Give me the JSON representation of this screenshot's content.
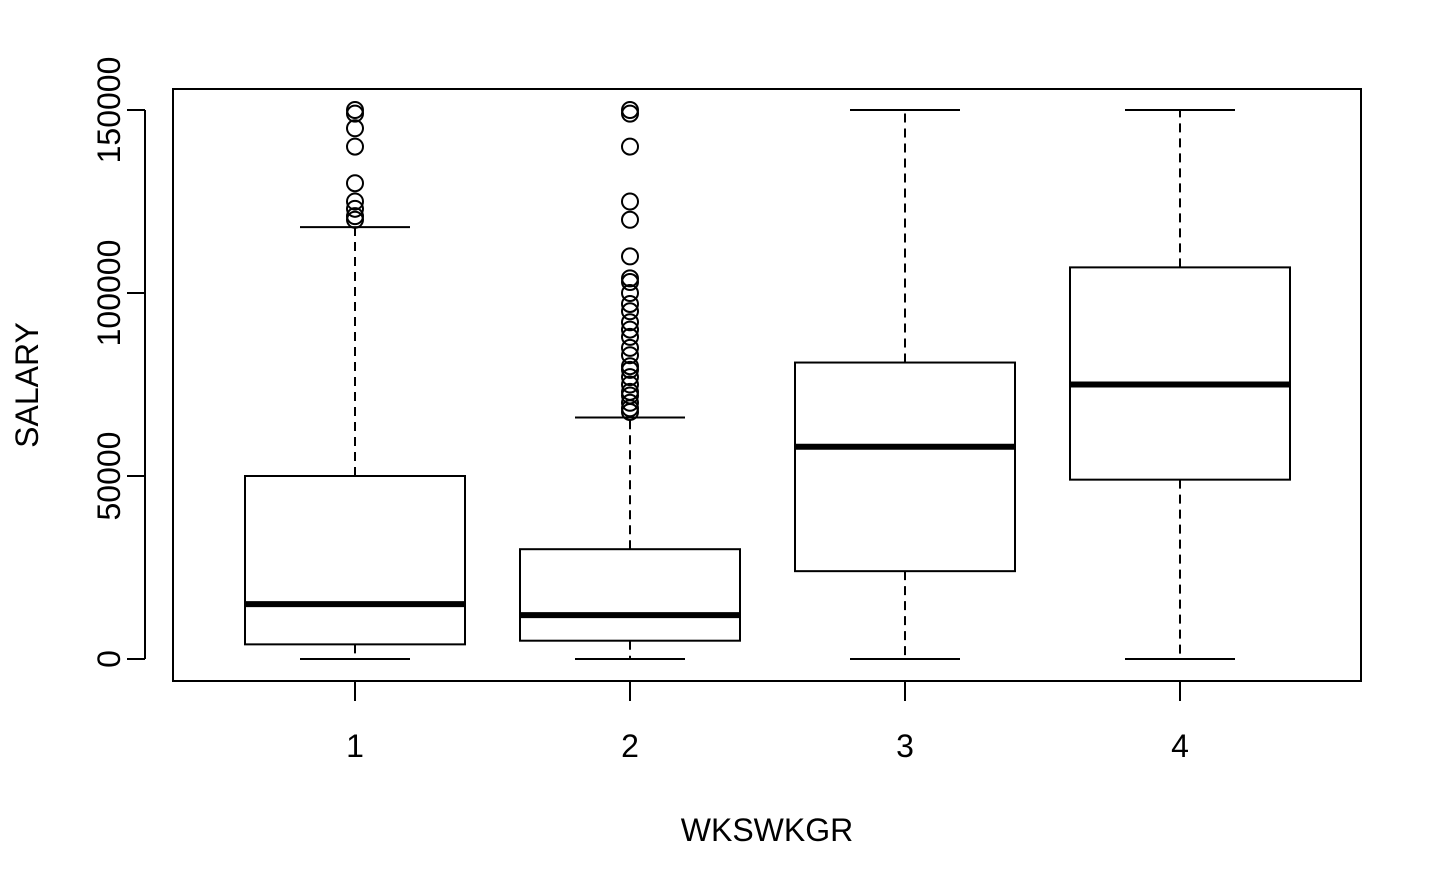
{
  "chart_data": {
    "type": "boxplot",
    "title": "",
    "xlabel": "WKSWKGR",
    "ylabel": "SALARY",
    "categories": [
      "1",
      "2",
      "3",
      "4"
    ],
    "ylim": [
      -6000,
      156000
    ],
    "y_ticks": [
      0,
      50000,
      100000,
      150000
    ],
    "y_tick_labels": [
      "0",
      "50000",
      "100000",
      "150000"
    ],
    "grid": false,
    "legend": "none",
    "boxes": [
      {
        "category": "1",
        "whisker_low": 0,
        "q1": 4000,
        "median": 15000,
        "q3": 50000,
        "whisker_high": 118000,
        "outliers": [
          120000,
          121000,
          123000,
          125000,
          130000,
          140000,
          145000,
          149000,
          150000
        ]
      },
      {
        "category": "2",
        "whisker_low": 0,
        "q1": 5000,
        "median": 12000,
        "q3": 30000,
        "whisker_high": 66000,
        "outliers": [
          67500,
          68500,
          70000,
          72000,
          73000,
          75000,
          77000,
          79000,
          80000,
          83000,
          85000,
          88000,
          90000,
          92000,
          95000,
          97000,
          100000,
          103000,
          104000,
          110000,
          120000,
          125000,
          140000,
          149000,
          150000
        ]
      },
      {
        "category": "3",
        "whisker_low": 0,
        "q1": 24000,
        "median": 58000,
        "q3": 81000,
        "whisker_high": 150000,
        "outliers": []
      },
      {
        "category": "4",
        "whisker_low": 0,
        "q1": 49000,
        "median": 75000,
        "q3": 107000,
        "whisker_high": 150000,
        "outliers": []
      }
    ],
    "colors": {
      "stroke": "#000000",
      "background": "#ffffff"
    }
  }
}
